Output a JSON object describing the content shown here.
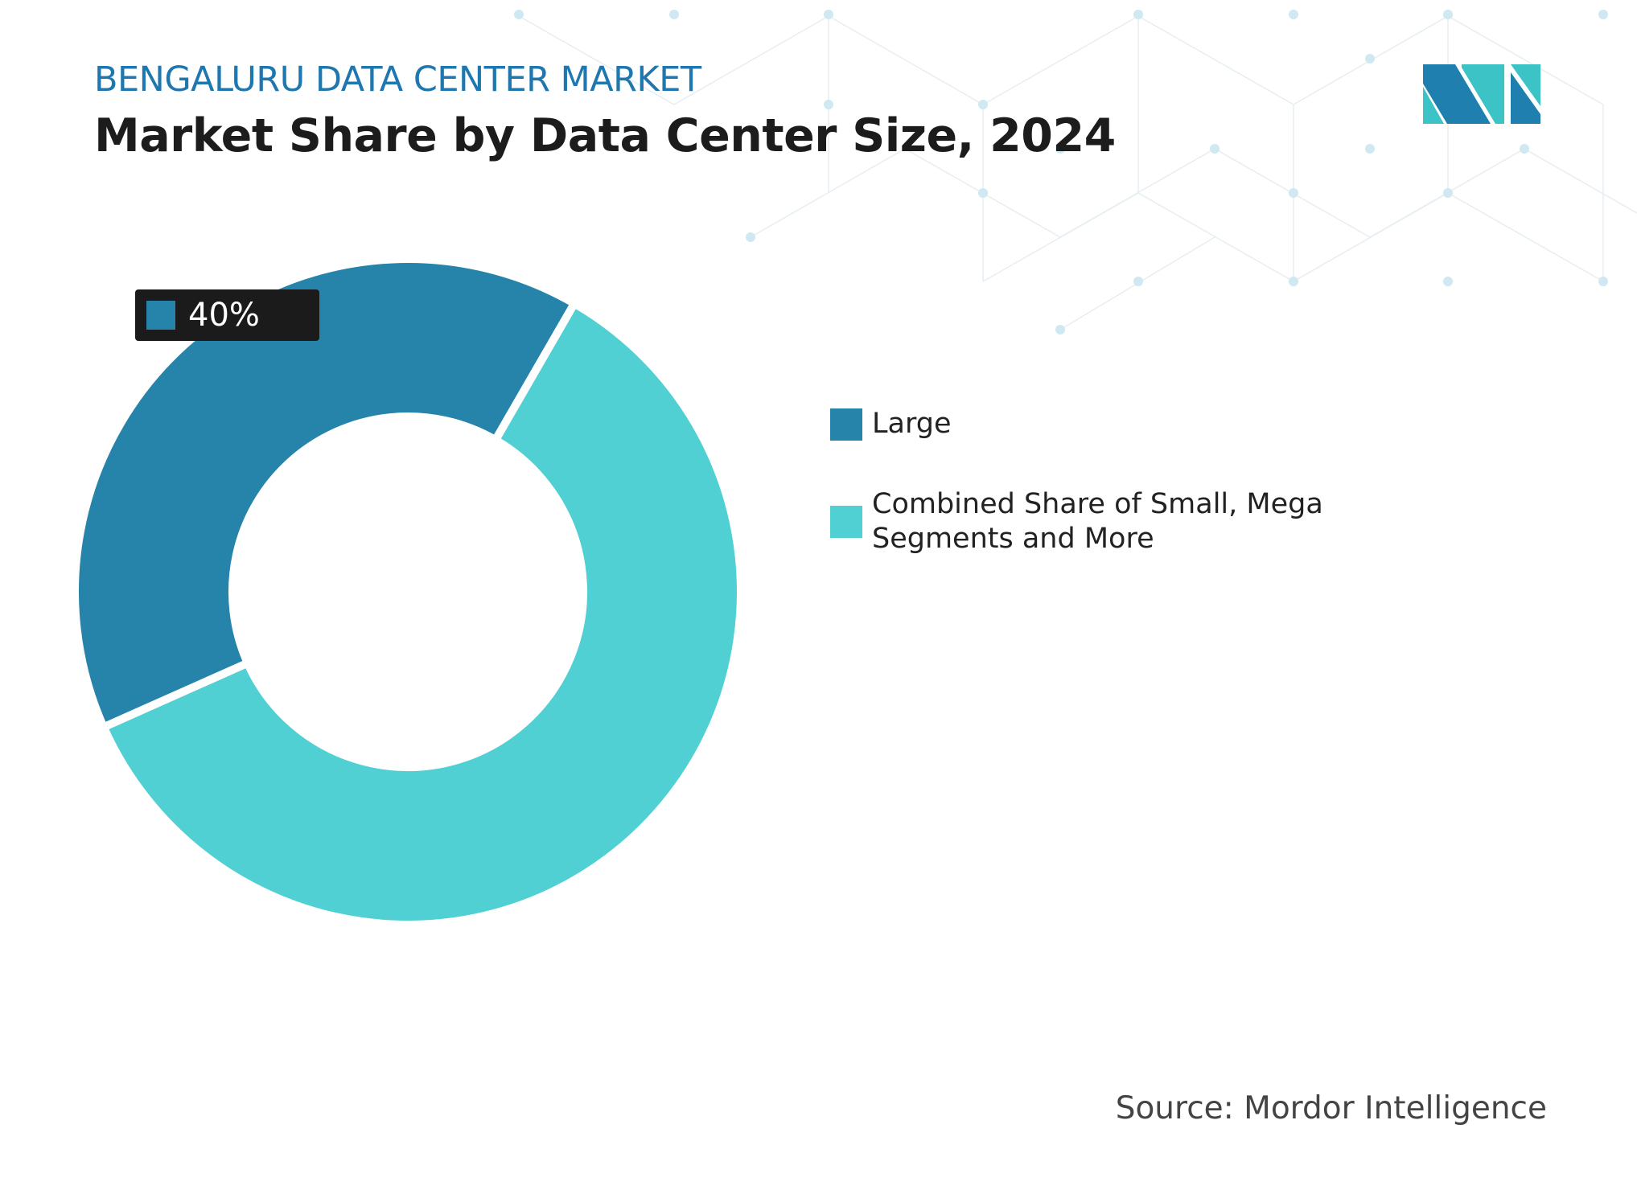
{
  "header": {
    "subtitle": "BENGALURU DATA CENTER MARKET",
    "title": "Market Share by Data Center Size, 2024"
  },
  "source": "Source: Mordor Intelligence",
  "colors": {
    "large": "#2683a9",
    "other": "#51d0d3",
    "brand": "#1f77b0"
  },
  "chart_data": {
    "type": "pie",
    "donut": true,
    "title": "Market Share by Data Center Size, 2024",
    "categories": [
      "Large",
      "Combined Share of Small, Mega Segments and More"
    ],
    "values": [
      40,
      60
    ],
    "data_labels": [
      "40%",
      ""
    ],
    "legend_position": "right"
  }
}
